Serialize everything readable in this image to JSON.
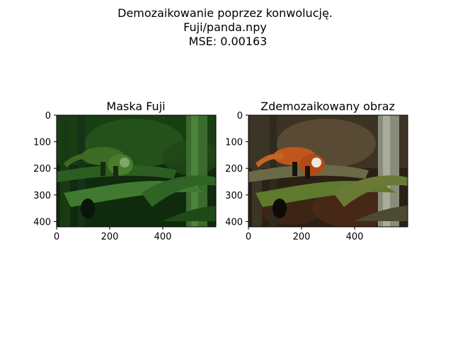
{
  "figure": {
    "suptitle_lines": [
      "Demozaikowanie poprzez konwolucję.",
      "Fuji/panda.npy",
      "MSE: 0.00163"
    ]
  },
  "chart_data": [
    {
      "type": "image",
      "title": "Maska Fuji",
      "xlim": [
        0,
        600
      ],
      "ylim": [
        420,
        0
      ],
      "xticks": [
        0,
        200,
        400
      ],
      "yticks": [
        0,
        100,
        200,
        300,
        400
      ],
      "content": "red panda on mossy branch, Fuji mosaic mask (mostly green channel)",
      "tint": "green"
    },
    {
      "type": "image",
      "title": "Zdemozaikowany obraz",
      "xlim": [
        0,
        600
      ],
      "ylim": [
        420,
        0
      ],
      "xticks": [
        0,
        200,
        400
      ],
      "yticks": [
        0,
        100,
        200,
        300,
        400
      ],
      "content": "red panda on mossy branch, demosaiced full-color image",
      "tint": "color"
    }
  ]
}
